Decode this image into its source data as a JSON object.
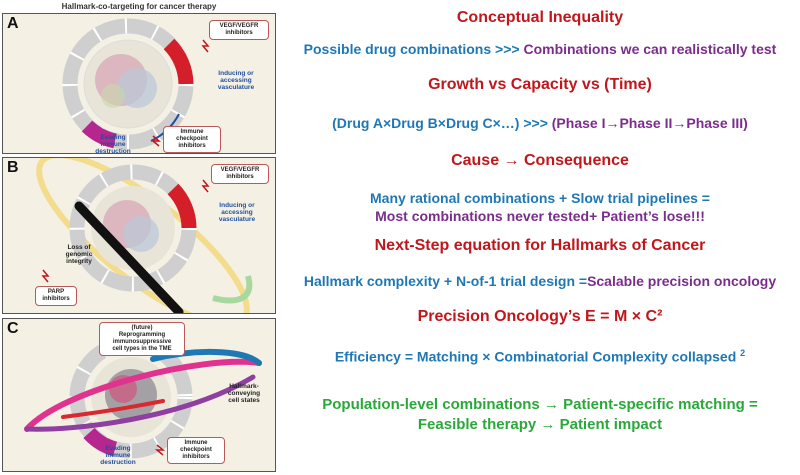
{
  "figure": {
    "title": "Hallmark-co-targeting for cancer therapy",
    "panel_a": {
      "letter": "A",
      "callouts": [
        "VEGF/VEGFR\ninhibitors",
        "Immune\ncheckpoint\ninhibitors"
      ],
      "labels": [
        "Inducing or\naccessing\nvasculature",
        "Evading\nimmune\ndestruction"
      ]
    },
    "panel_b": {
      "letter": "B",
      "callouts": [
        "VEGF/VEGFR\ninhibitors",
        "PARP\ninhibitors"
      ],
      "labels": [
        "Inducing or\naccessing\nvasculature",
        "Loss of\ngenomic\nintegrity"
      ]
    },
    "panel_c": {
      "letter": "C",
      "callouts": [
        "(future)\nReprogramming\nimmunosuppressive\ncell types in the TME",
        "Immune\ncheckpoint\ninhibitors"
      ],
      "labels": [
        "Hallmark-\nconveying\ncell states",
        "Evading\nimmune\ndestruction"
      ]
    },
    "colors": {
      "panel_bg": "#f4f0e3",
      "ring_gray": "#c9c9c9",
      "vasculature_red": "#d41f2b",
      "immune_magenta": "#b5268f",
      "genomic_black": "#111111",
      "orbit_yellow": "#f3dc8c",
      "orbit_green": "#a8d8a0",
      "orbit_blue": "#1f78b4",
      "orbit_purple": "#8e3fa0",
      "orbit_red": "#d9282f",
      "orbit_pink": "#e0338f"
    }
  },
  "text": {
    "h1": "Conceptual Inequality",
    "l1_a": "Possible drug combinations >>> ",
    "l1_b": "Combinations we can realistically test",
    "h2": "Growth vs Capacity vs (Time)",
    "l2_a": "(Drug A×Drug B×Drug C×…) >>> ",
    "l2_b": "(Phase I→Phase II→Phase III)",
    "h3": "Cause → Consequence",
    "l3_a": "Many rational combinations + Slow trial pipelines =",
    "l3_b": "Most combinations never tested+ Patient’s lose!!!",
    "h4": "Next-Step equation for Hallmarks of Cancer",
    "l4_a": "Hallmark complexity + N-of-1 trial design =",
    "l4_b": "Scalable precision oncology",
    "h5": "Precision Oncology’s E = M × C²",
    "l5": "Efficiency = Matching × Combinatorial Complexity collapsed",
    "l5_sup": "2",
    "l6_a": "Population-level combinations → Patient-specific matching =",
    "l6_b": "Feasible therapy → Patient impact"
  }
}
